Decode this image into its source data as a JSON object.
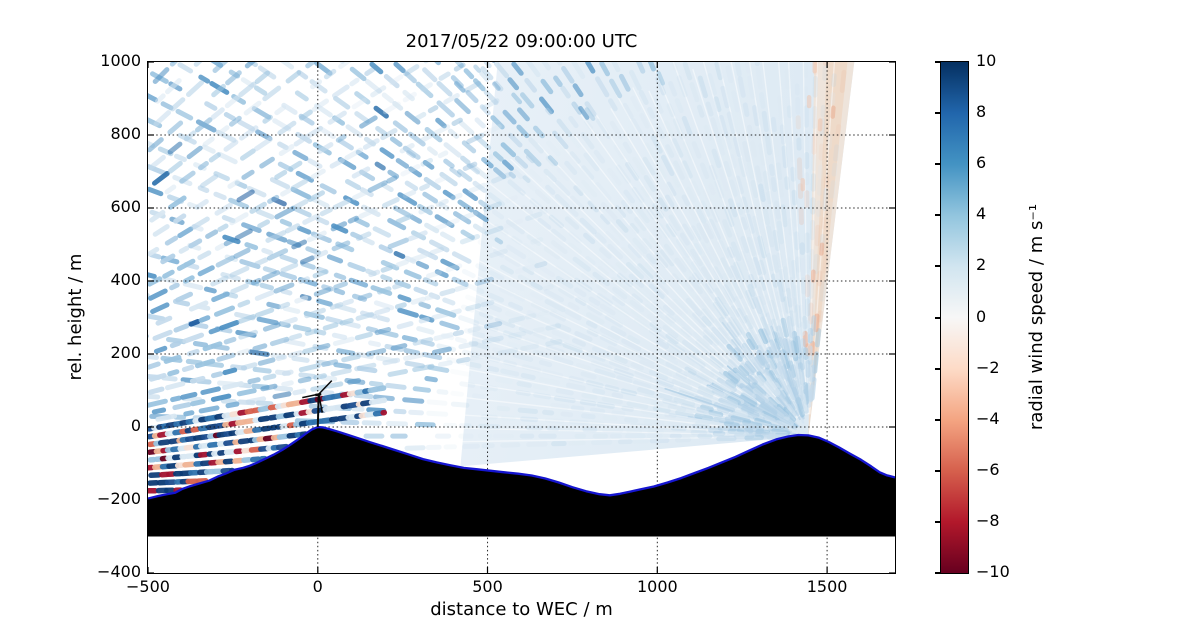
{
  "figure": {
    "title": "2017/05/22 09:00:00 UTC",
    "x_axis": {
      "label": "distance to WEC / m",
      "tick_labels": [
        "−500",
        "0",
        "500",
        "1000",
        "1500"
      ]
    },
    "y_axis": {
      "label": "rel. height / m",
      "tick_labels": [
        "1000",
        "800",
        "600",
        "400",
        "200",
        "0",
        "−200",
        "−400"
      ]
    },
    "colorbar": {
      "label": "radial wind speed / m s⁻¹",
      "tick_labels": [
        "10",
        "8",
        "6",
        "4",
        "2",
        "0",
        "−2",
        "−4",
        "−6",
        "−8",
        "−10"
      ]
    }
  },
  "chart_data": {
    "type": "heatmap",
    "title": "2017/05/22 09:00:00 UTC",
    "xlabel": "distance to WEC / m",
    "ylabel": "rel. height / m",
    "xlim": [
      -500,
      1700
    ],
    "ylim": [
      -400,
      1000
    ],
    "xticks": [
      -500,
      0,
      500,
      1000,
      1500
    ],
    "yticks": [
      -400,
      -200,
      0,
      200,
      400,
      600,
      800,
      1000
    ],
    "grid": true,
    "colorbar": {
      "label": "radial wind speed / m s⁻¹",
      "vmin": -10,
      "vmax": 10,
      "ticks": [
        10,
        8,
        6,
        4,
        2,
        0,
        -2,
        -4,
        -6,
        -8,
        -10
      ],
      "cmap_name": "RdBu (blue = positive, red = negative)",
      "cmap_stops": [
        "#053061",
        "#2166ac",
        "#4393c3",
        "#92c5de",
        "#d1e5f0",
        "#f7f7f7",
        "#fddbc7",
        "#f4a582",
        "#d6604d",
        "#b2182b",
        "#67001f"
      ]
    },
    "wec": {
      "x": 0,
      "base_height": 0,
      "hub_height": 90,
      "rotor_radius": 45
    },
    "terrain": {
      "fill": "#000000",
      "outline": "#1515d0",
      "base_height": -300,
      "profile": [
        [
          -500,
          -196
        ],
        [
          -470,
          -189
        ],
        [
          -445,
          -184
        ],
        [
          -420,
          -180
        ],
        [
          -400,
          -170
        ],
        [
          -375,
          -162
        ],
        [
          -350,
          -155
        ],
        [
          -320,
          -147
        ],
        [
          -295,
          -136
        ],
        [
          -270,
          -127
        ],
        [
          -245,
          -117
        ],
        [
          -220,
          -112
        ],
        [
          -200,
          -106
        ],
        [
          -180,
          -98
        ],
        [
          -155,
          -87
        ],
        [
          -130,
          -76
        ],
        [
          -105,
          -63
        ],
        [
          -80,
          -48
        ],
        [
          -55,
          -32
        ],
        [
          -35,
          -18
        ],
        [
          -18,
          -7
        ],
        [
          0,
          0
        ],
        [
          15,
          -1
        ],
        [
          35,
          -6
        ],
        [
          60,
          -13
        ],
        [
          90,
          -22
        ],
        [
          120,
          -31
        ],
        [
          155,
          -42
        ],
        [
          190,
          -52
        ],
        [
          230,
          -64
        ],
        [
          270,
          -76
        ],
        [
          310,
          -88
        ],
        [
          350,
          -97
        ],
        [
          390,
          -105
        ],
        [
          430,
          -112
        ],
        [
          470,
          -116
        ],
        [
          510,
          -120
        ],
        [
          550,
          -124
        ],
        [
          590,
          -128
        ],
        [
          630,
          -133
        ],
        [
          670,
          -141
        ],
        [
          710,
          -152
        ],
        [
          750,
          -165
        ],
        [
          790,
          -176
        ],
        [
          830,
          -184
        ],
        [
          860,
          -187
        ],
        [
          890,
          -183
        ],
        [
          920,
          -177
        ],
        [
          950,
          -171
        ],
        [
          990,
          -163
        ],
        [
          1030,
          -152
        ],
        [
          1070,
          -140
        ],
        [
          1110,
          -126
        ],
        [
          1150,
          -112
        ],
        [
          1190,
          -97
        ],
        [
          1230,
          -82
        ],
        [
          1270,
          -65
        ],
        [
          1310,
          -48
        ],
        [
          1350,
          -34
        ],
        [
          1385,
          -26
        ],
        [
          1415,
          -22
        ],
        [
          1445,
          -23
        ],
        [
          1475,
          -29
        ],
        [
          1505,
          -41
        ],
        [
          1535,
          -56
        ],
        [
          1565,
          -72
        ],
        [
          1600,
          -90
        ],
        [
          1630,
          -108
        ],
        [
          1655,
          -124
        ],
        [
          1675,
          -132
        ],
        [
          1700,
          -138
        ]
      ]
    },
    "scans": [
      {
        "name": "west-lidar-fan",
        "origin": [
          -1700,
          -200
        ],
        "elevation_deg": [
          1.2,
          44.5
        ],
        "max_range_m": 2450,
        "note": "segmented range-gate returns, mostly +1 to +5 m/s (light blue); beams below ridge height show noisy ±10 m/s speckle and terminate on the western slope"
      },
      {
        "name": "east-lidar-fan",
        "origin": [
          1445,
          -25
        ],
        "elevation_deg_from_east_horizontal": [
          84,
          183
        ],
        "max_range_m": 2400,
        "note": "smooth pale-blue sector (~0 to +2 m/s) with faint radial streaks near the origin, scattered stronger returns aloft and a slightly negative (pale orange) band along its eastern edge"
      }
    ],
    "render": {
      "wash_polygon": [
        [
          530,
          1000
        ],
        [
          1580,
          1000
        ],
        [
          1445,
          -25
        ],
        [
          420,
          -108
        ]
      ],
      "wash_colors": [
        "#e9f1f8",
        "#dce9f3"
      ],
      "orange_edge_color": "#f3e2d4",
      "blue_palette": [
        "#d9e8f3",
        "#c6dced",
        "#b1d0e7",
        "#9ac4e0",
        "#7fb2d7",
        "#639fcc",
        "#4c90c3",
        "#2f72ad",
        "#1b5a9e"
      ],
      "noise_palette": [
        "#0b3a74",
        "#123f7a",
        "#1d4e8f",
        "#2f72ad",
        "#9ac4e0",
        "#d9e8f3",
        "#f6e0d5",
        "#f0b393",
        "#d6604d",
        "#a31230",
        "#67001f"
      ],
      "salmon_colors": [
        "#f2c4ab",
        "#eaa98c"
      ]
    }
  }
}
